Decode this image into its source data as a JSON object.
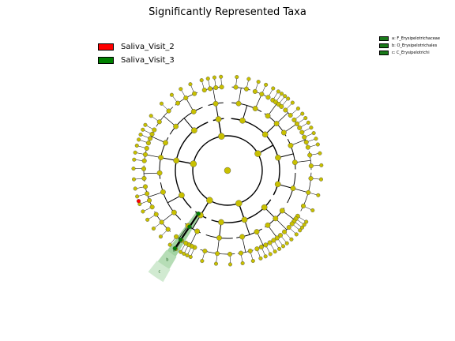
{
  "title": "Significantly Represented Taxa",
  "legend_groups": [
    {
      "label": "Saliva_Visit_2",
      "color": "#ff0000"
    },
    {
      "label": "Saliva_Visit_3",
      "color": "#008000"
    }
  ],
  "legend_taxa": [
    {
      "label": "a: F_Erysipelotrichaceae",
      "color": "#1a7a1a"
    },
    {
      "label": "b: O_Erysipelotrichales",
      "color": "#1a7a1a"
    },
    {
      "label": "c: C_Erysipelotrichi",
      "color": "#1a7a1a"
    }
  ],
  "highlight_labels": [
    "a",
    "b",
    "c"
  ],
  "colors": {
    "node_default": "#c8c000",
    "node_visit2": "#ff0000",
    "node_visit3": "#008000",
    "clade_highlight": "#2e9e2e",
    "edge": "#000000"
  }
}
